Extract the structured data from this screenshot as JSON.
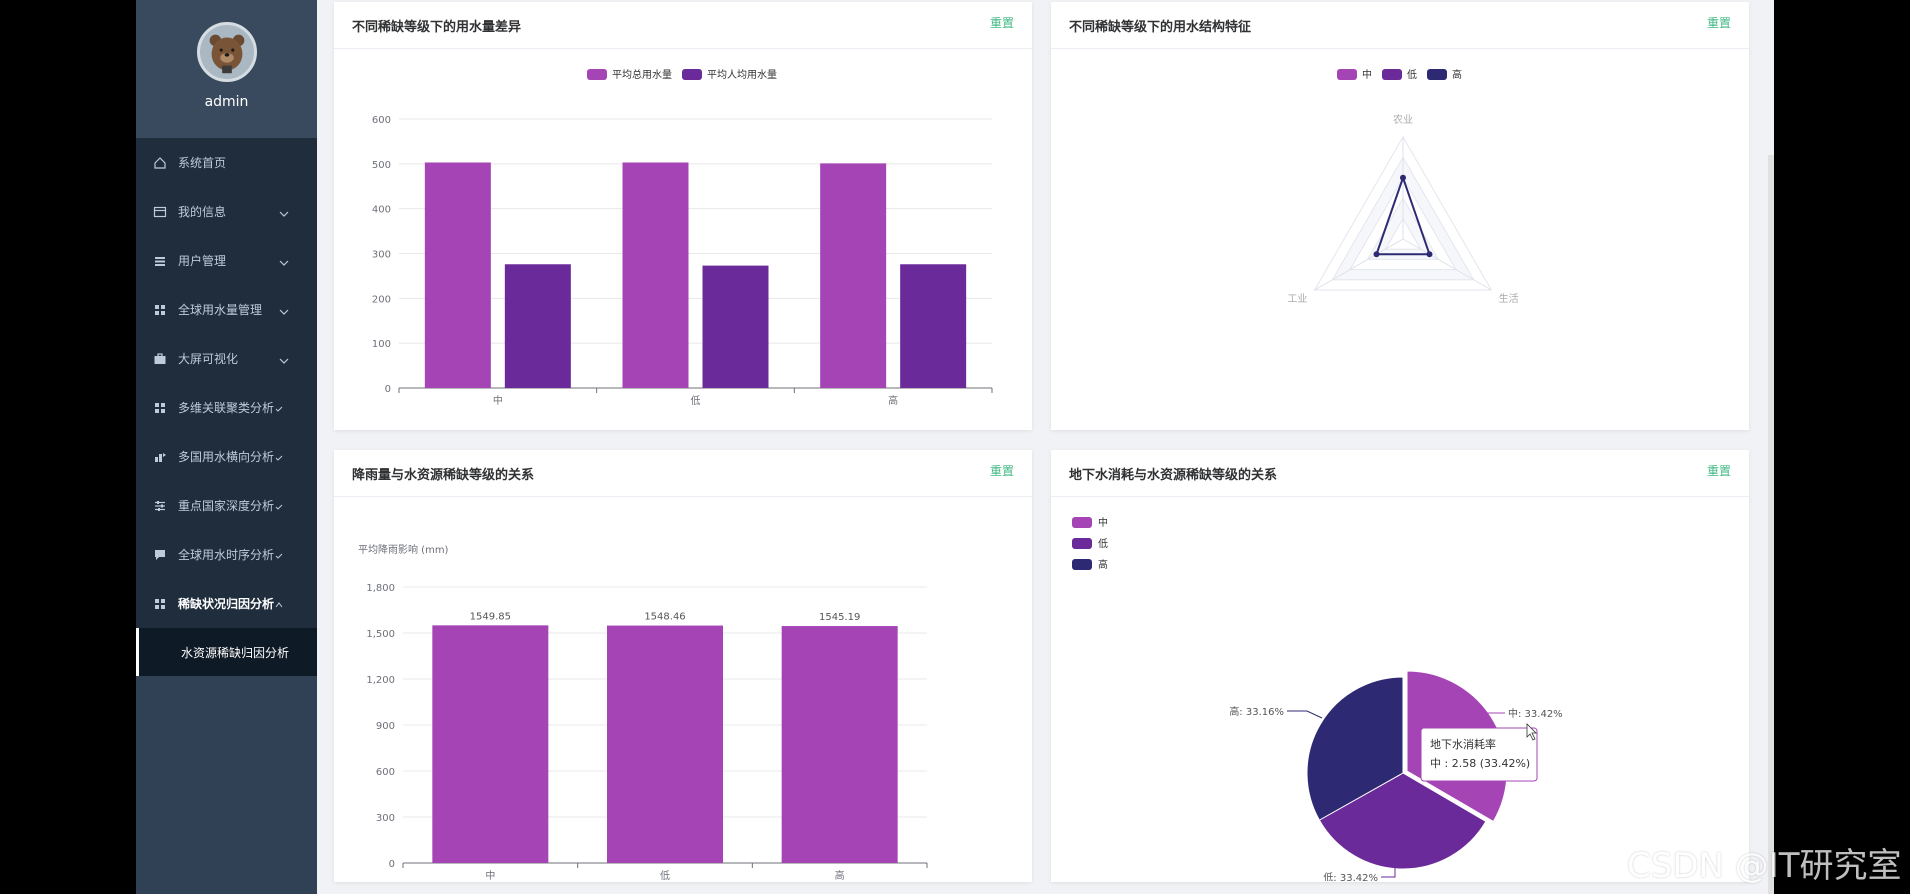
{
  "user": {
    "name": "admin"
  },
  "menu": {
    "items": [
      {
        "label": "系统首页",
        "icon": "home-icon",
        "expandable": false
      },
      {
        "label": "我的信息",
        "icon": "card-icon",
        "expandable": true
      },
      {
        "label": "用户管理",
        "icon": "list-icon",
        "expandable": true
      },
      {
        "label": "全球用水量管理",
        "icon": "grid-icon",
        "expandable": true
      },
      {
        "label": "大屏可视化",
        "icon": "briefcase-icon",
        "expandable": true
      },
      {
        "label": "多维关联聚类分析",
        "icon": "grid-icon",
        "expandable": true
      },
      {
        "label": "多国用水横向分析",
        "icon": "chart-icon",
        "expandable": true
      },
      {
        "label": "重点国家深度分析",
        "icon": "sliders-icon",
        "expandable": true
      },
      {
        "label": "全球用水时序分析",
        "icon": "comment-icon",
        "expandable": true
      },
      {
        "label": "稀缺状况归因分析",
        "icon": "grid-icon",
        "expandable": true,
        "active": true
      }
    ],
    "active_sub": "水资源稀缺归因分析"
  },
  "cards": {
    "c1": {
      "title": "不同稀缺等级下的用水量差异",
      "reset": "重置"
    },
    "c2": {
      "title": "不同稀缺等级下的用水结构特征",
      "reset": "重置"
    },
    "c3": {
      "title": "降雨量与水资源稀缺等级的关系",
      "reset": "重置"
    },
    "c4": {
      "title": "地下水消耗与水资源稀缺等级的关系",
      "reset": "重置"
    }
  },
  "colors": {
    "purple1": "#a544b5",
    "purple2": "#6a2a99",
    "navy": "#2d2a73",
    "accent": "#42b983"
  },
  "tooltip": {
    "title": "地下水消耗率",
    "line": "中 : 2.58 (33.42%)"
  },
  "watermark": "CSDN @IT研究室",
  "chart_data": [
    {
      "type": "bar",
      "categories": [
        "中",
        "低",
        "高"
      ],
      "series": [
        {
          "name": "平均总用水量",
          "values": [
            503,
            503,
            501
          ],
          "color": "#a544b5"
        },
        {
          "name": "平均人均用水量",
          "values": [
            276,
            273,
            276
          ],
          "color": "#6a2a99"
        }
      ],
      "ylim": [
        0,
        600
      ],
      "yticks": [
        0,
        100,
        200,
        300,
        400,
        500,
        600
      ],
      "legend": "top-center"
    },
    {
      "type": "radar",
      "indicators": [
        "农业",
        "生活",
        "工业"
      ],
      "series": [
        {
          "name": "中",
          "color": "#a544b5"
        },
        {
          "name": "低",
          "color": "#6a2a99"
        },
        {
          "name": "高",
          "color": "#2d2a73",
          "values": [
            0.6,
            0.3,
            0.3
          ]
        }
      ],
      "legend": "top-center"
    },
    {
      "type": "bar",
      "categories": [
        "中",
        "低",
        "高"
      ],
      "values": [
        1549.85,
        1548.46,
        1545.19
      ],
      "labels": [
        "1549.85",
        "1548.46",
        "1545.19"
      ],
      "ylabel": "平均降雨影响 (mm)",
      "ylim": [
        0,
        1800
      ],
      "yticks": [
        0,
        300,
        600,
        900,
        1200,
        1500,
        1800
      ],
      "ytick_labels": [
        "0",
        "300",
        "600",
        "900",
        "1,200",
        "1,500",
        "1,800"
      ],
      "color": "#a544b5"
    },
    {
      "type": "pie",
      "slices": [
        {
          "name": "中",
          "value": 2.58,
          "percent": "33.42%",
          "color": "#a544b5",
          "label": "中: 33.42%"
        },
        {
          "name": "低",
          "percent": "33.42%",
          "color": "#6a2a99",
          "label": "低: 33.42%"
        },
        {
          "name": "高",
          "percent": "33.16%",
          "color": "#2d2a73",
          "label": "高: 33.16%"
        }
      ],
      "legend": "top-left"
    }
  ]
}
